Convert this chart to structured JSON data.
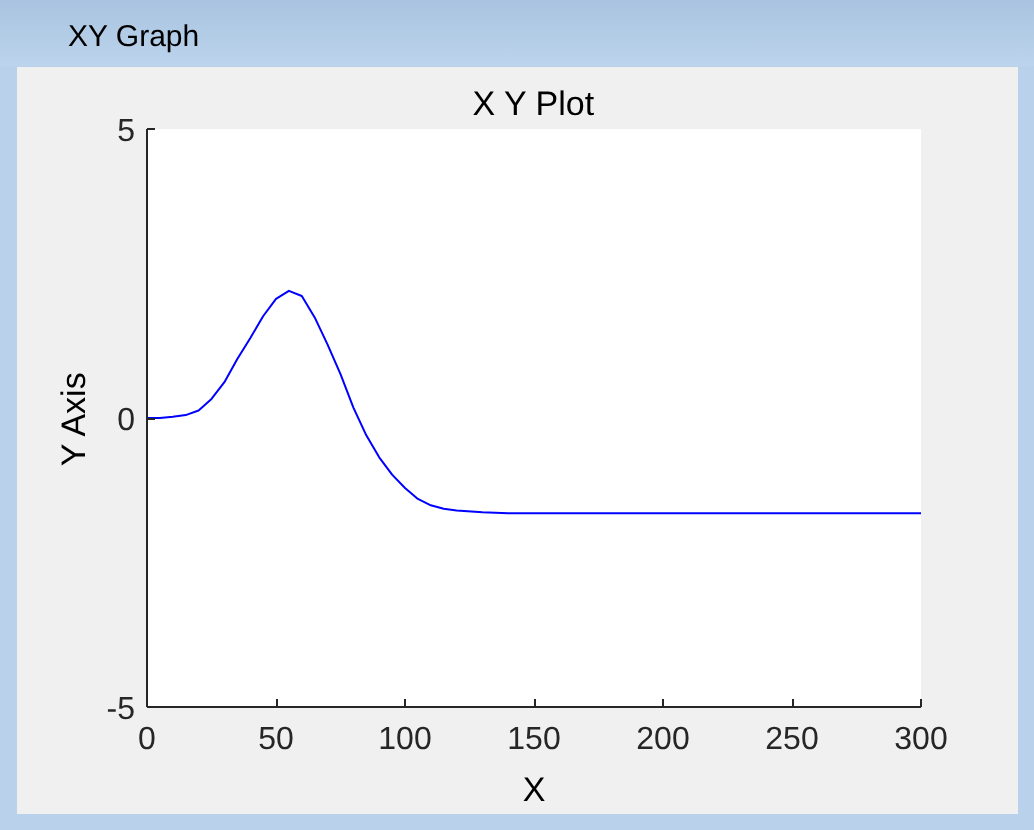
{
  "chart_data": {
    "type": "line",
    "title": "X Y Plot",
    "xlabel": "X",
    "ylabel": "Y Axis",
    "annotations": [
      "XY Graph"
    ],
    "x": [
      0,
      5,
      10,
      15,
      20,
      25,
      30,
      35,
      40,
      45,
      50,
      55,
      60,
      65,
      70,
      75,
      80,
      85,
      90,
      95,
      100,
      105,
      110,
      115,
      120,
      130,
      140,
      150,
      200,
      250,
      300
    ],
    "series": [
      {
        "color": "#0000ff",
        "values": [
          0,
          0,
          0.02,
          0.05,
          0.13,
          0.33,
          0.62,
          1.02,
          1.38,
          1.76,
          2.06,
          2.2,
          2.11,
          1.74,
          1.27,
          0.76,
          0.18,
          -0.3,
          -0.68,
          -0.98,
          -1.21,
          -1.4,
          -1.51,
          -1.57,
          -1.6,
          -1.63,
          -1.65,
          -1.65,
          -1.65,
          -1.65,
          -1.65
        ]
      }
    ],
    "xlim": [
      0,
      300
    ],
    "ylim": [
      -5,
      5
    ],
    "xticks": [
      0,
      50,
      100,
      150,
      200,
      250,
      300
    ],
    "yticks": [
      -5,
      0,
      5
    ],
    "grid": false,
    "marker": "none",
    "line_style": "solid"
  }
}
